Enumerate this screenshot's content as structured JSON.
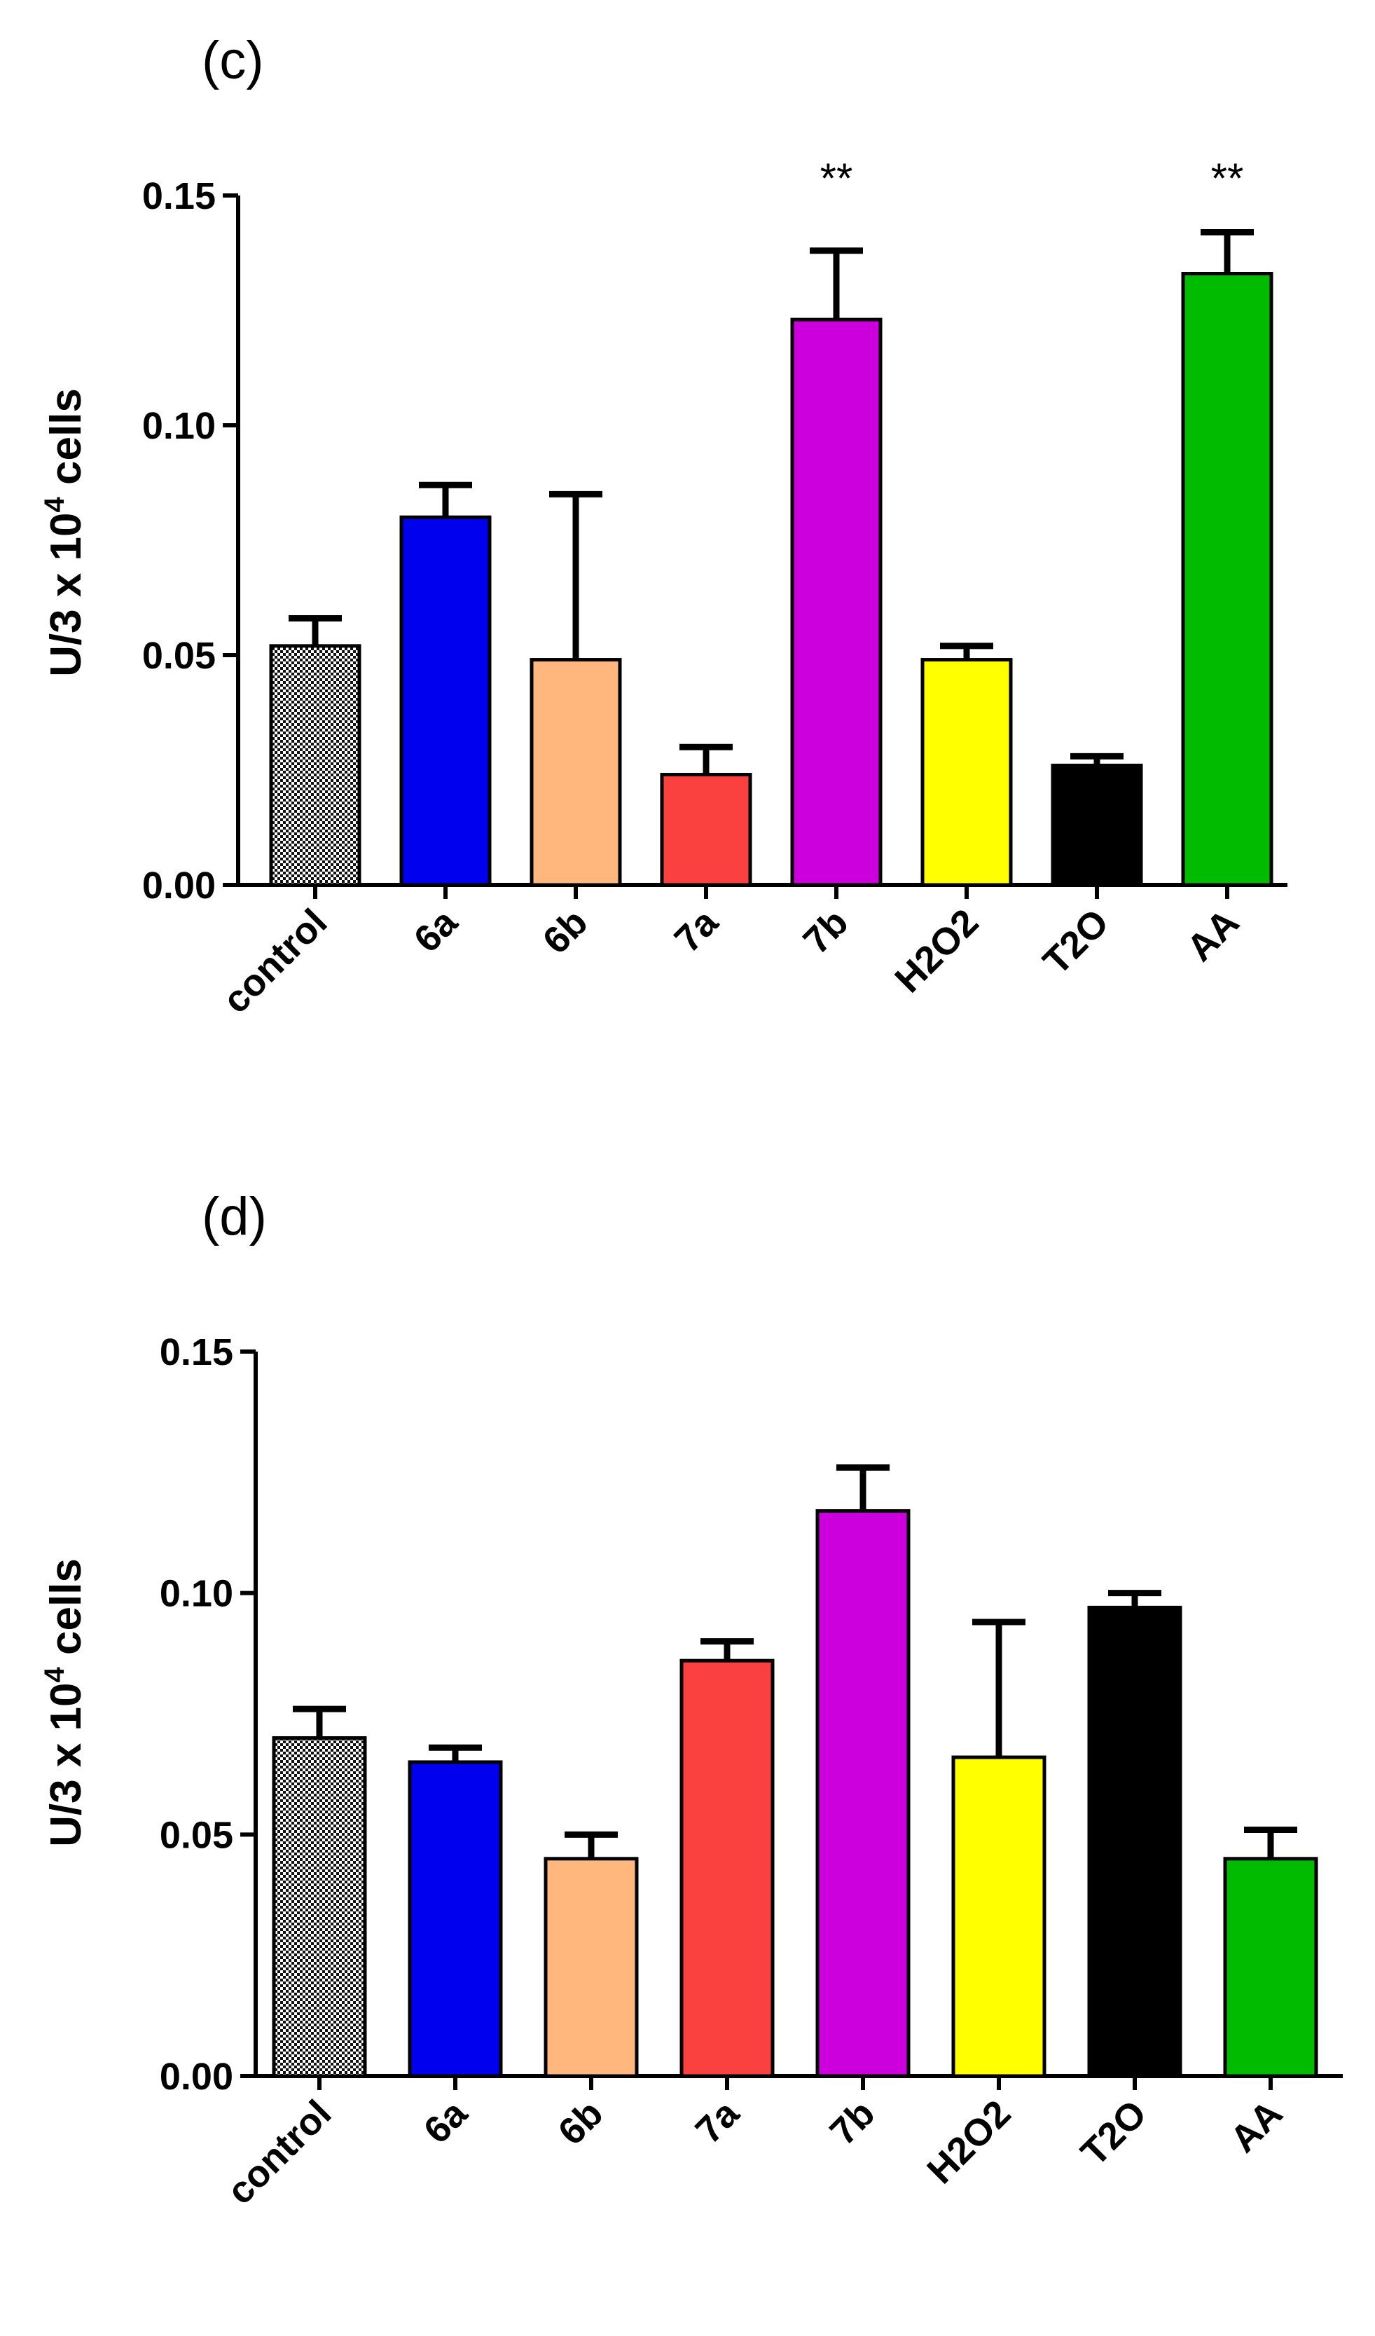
{
  "chart_data": [
    {
      "type": "bar",
      "panel_label": "(c)",
      "ylabel": "U/3 x 10",
      "ylabel_sup": "4",
      "ylabel_suffix": " cells",
      "ylim": [
        0,
        0.15
      ],
      "yticks": [
        "0.00",
        "0.05",
        "0.10",
        "0.15"
      ],
      "categories": [
        "control",
        "6a",
        "6b",
        "7a",
        "7b",
        "H2O2",
        "T2O",
        "AA"
      ],
      "values": [
        0.052,
        0.08,
        0.049,
        0.024,
        0.123,
        0.049,
        0.026,
        0.133
      ],
      "errors": [
        0.006,
        0.007,
        0.036,
        0.006,
        0.015,
        0.003,
        0.002,
        0.009
      ],
      "annotations": [
        "",
        "",
        "",
        "",
        "**",
        "",
        "",
        "**"
      ],
      "colors": [
        "#f0f0f0",
        "#0000ee",
        "#ffb77e",
        "#fb4040",
        "#cc00dd",
        "#ffff00",
        "#000000",
        "#00bb00"
      ]
    },
    {
      "type": "bar",
      "panel_label": "(d)",
      "ylabel": "U/3 x 10",
      "ylabel_sup": "4",
      "ylabel_suffix": " cells",
      "ylim": [
        0,
        0.15
      ],
      "yticks": [
        "0.00",
        "0.05",
        "0.10",
        "0.15"
      ],
      "categories": [
        "control",
        "6a",
        "6b",
        "7a",
        "7b",
        "H2O2",
        "T2O",
        "AA"
      ],
      "values": [
        0.07,
        0.065,
        0.045,
        0.086,
        0.117,
        0.066,
        0.097,
        0.045
      ],
      "errors": [
        0.006,
        0.003,
        0.005,
        0.004,
        0.009,
        0.028,
        0.003,
        0.006
      ],
      "annotations": [
        "",
        "",
        "",
        "",
        "",
        "",
        "",
        ""
      ],
      "colors": [
        "#f0f0f0",
        "#0000ee",
        "#ffb77e",
        "#fb4040",
        "#cc00dd",
        "#ffff00",
        "#000000",
        "#00bb00"
      ]
    }
  ]
}
